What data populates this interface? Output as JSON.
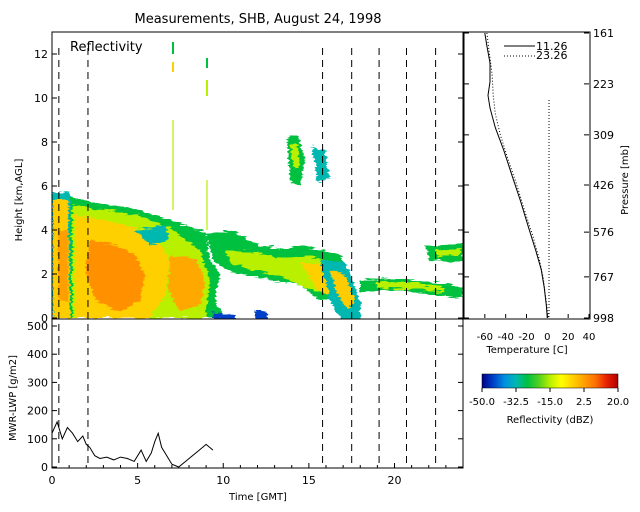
{
  "title": "Measurements, SHB, August 24, 1998",
  "panels": {
    "reflectivity": {
      "label": "Reflectivity",
      "ylabel": "Height [km,AGL]",
      "yticks": [
        "0",
        "2",
        "4",
        "6",
        "8",
        "10",
        "12"
      ]
    },
    "lwp": {
      "ylabel": "MWR-LWP [g/m2]",
      "yticks": [
        "0",
        "100",
        "200",
        "300",
        "400",
        "500"
      ]
    },
    "time_axis": {
      "xlabel": "Time [GMT]",
      "xticks": [
        "0",
        "5",
        "10",
        "15",
        "20"
      ]
    },
    "sounding": {
      "pressure_label": "Pressure [mb]",
      "pressure_ticks": [
        "161",
        "223",
        "309",
        "426",
        "576",
        "767",
        "998"
      ],
      "temp_label": "Temperature [C]",
      "temp_ticks": [
        "-60",
        "-40",
        "-20",
        "0",
        "20",
        "40"
      ],
      "legend": [
        "11.26",
        "23.26"
      ]
    },
    "colorbar": {
      "label": "Reflectivity (dBZ)",
      "ticks": [
        "-50.0",
        "-32.5",
        "-15.0",
        "2.5",
        "20.0"
      ],
      "colors": [
        "#00008a",
        "#0040c8",
        "#0090e0",
        "#00b8b0",
        "#00c040",
        "#50d020",
        "#b8f000",
        "#ffff00",
        "#ffd000",
        "#ffa000",
        "#ff7000",
        "#e82000",
        "#b00000"
      ]
    }
  },
  "chart_data": [
    {
      "type": "heatmap",
      "title": "Reflectivity",
      "xlabel": "Time [GMT]",
      "ylabel": "Height [km,AGL]",
      "xlim": [
        0,
        24
      ],
      "ylim": [
        0,
        13
      ],
      "zlabel": "Reflectivity (dBZ)",
      "zlim": [
        -50,
        20
      ],
      "sounding_times": [
        0.4,
        2.1,
        15.8,
        17.5,
        19.1,
        20.7,
        22.4
      ],
      "echo_regions": [
        {
          "x": [
            0.0,
            2.0
          ],
          "y": [
            0.0,
            5.7
          ]
        },
        {
          "x": [
            2.0,
            7.0
          ],
          "y": [
            0.0,
            5.2
          ]
        },
        {
          "x": [
            7.0,
            9.0
          ],
          "y": [
            0.5,
            4.5
          ]
        },
        {
          "x": [
            9.0,
            15.5
          ],
          "y": [
            0.6,
            4.2
          ]
        },
        {
          "x": [
            13.5,
            15.7
          ],
          "y": [
            6.6,
            8.2
          ]
        },
        {
          "x": [
            15.0,
            18.0
          ],
          "y": [
            0.0,
            3.0
          ]
        },
        {
          "x": [
            18.0,
            24.0
          ],
          "y": [
            1.0,
            2.2
          ]
        },
        {
          "x": [
            21.5,
            24.0
          ],
          "y": [
            2.8,
            3.5
          ]
        }
      ]
    },
    {
      "type": "line",
      "title": "",
      "xlabel": "Time [GMT]",
      "ylabel": "MWR-LWP [g/m2]",
      "xlim": [
        0,
        24
      ],
      "ylim": [
        0,
        500
      ],
      "x": [
        0.0,
        0.3,
        0.6,
        0.9,
        1.2,
        1.5,
        1.8,
        2.0,
        2.2,
        2.5,
        2.8,
        3.2,
        3.6,
        4.0,
        4.4,
        4.8,
        5.2,
        5.5,
        5.8,
        6.0,
        6.2,
        6.4,
        6.6,
        6.8,
        7.0,
        7.4,
        7.8,
        8.2,
        8.6,
        9.0,
        9.4
      ],
      "y": [
        120,
        160,
        100,
        140,
        120,
        90,
        110,
        80,
        70,
        40,
        30,
        35,
        25,
        35,
        30,
        20,
        60,
        20,
        50,
        90,
        120,
        70,
        50,
        30,
        10,
        0,
        20,
        40,
        60,
        80,
        60
      ]
    },
    {
      "type": "line",
      "title": "",
      "xlabel": "Temperature [C]",
      "ylabel": "Pressure [mb]",
      "xlim": [
        -80,
        40
      ],
      "yticks": [
        161,
        223,
        309,
        426,
        576,
        767,
        998
      ],
      "series": [
        {
          "name": "11.26",
          "x": [
            -60,
            -58,
            -55,
            -55,
            -57,
            -55,
            -50,
            -42,
            -34,
            -26,
            -18,
            -11,
            -6,
            -3,
            -1,
            0
          ],
          "y": [
            161,
            175,
            195,
            220,
            240,
            260,
            295,
            340,
            400,
            470,
            560,
            650,
            730,
            820,
            920,
            998
          ]
        },
        {
          "name": "23.26",
          "x": [
            -58,
            -56,
            -53,
            -52,
            -50,
            -45,
            -38,
            -30,
            -22,
            -14,
            -8,
            -4,
            -2,
            0,
            1
          ],
          "y": [
            161,
            180,
            210,
            240,
            270,
            310,
            360,
            420,
            500,
            590,
            680,
            770,
            860,
            940,
            998
          ]
        }
      ]
    }
  ]
}
